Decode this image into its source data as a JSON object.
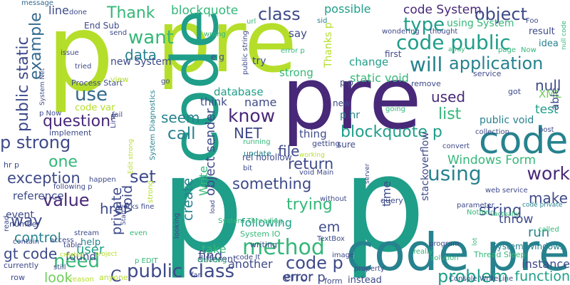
{
  "palette": {
    "purple": "#482878",
    "indigo": "#3e4a89",
    "blue": "#31688e",
    "teal": "#26828e",
    "green": "#1f9e89",
    "sea": "#35b779",
    "lime": "#6ece58",
    "yellowgreen": "#b5de2b",
    "yellow": "#fde725"
  },
  "words": [
    {
      "text": "p"
    },
    {
      "text": "pre"
    },
    {
      "text": "pre"
    },
    {
      "text": "p"
    },
    {
      "text": "p"
    },
    {
      "text": "code"
    },
    {
      "text": "code pre"
    },
    {
      "text": "code"
    },
    {
      "text": "Thank"
    },
    {
      "text": "blockquote"
    },
    {
      "text": "class"
    },
    {
      "text": "code System"
    },
    {
      "text": "type"
    },
    {
      "text": "object"
    },
    {
      "text": "want"
    },
    {
      "text": "code public"
    },
    {
      "text": "example"
    },
    {
      "text": "data"
    },
    {
      "text": "will"
    },
    {
      "text": "application"
    },
    {
      "text": "use"
    },
    {
      "text": "public static"
    },
    {
      "text": "question"
    },
    {
      "text": "know"
    },
    {
      "text": "NET"
    },
    {
      "text": "seem"
    },
    {
      "text": "call"
    },
    {
      "text": "p strong"
    },
    {
      "text": "blockquote p"
    },
    {
      "text": "file"
    },
    {
      "text": "one"
    },
    {
      "text": "return"
    },
    {
      "text": "exception"
    },
    {
      "text": "set"
    },
    {
      "text": "using"
    },
    {
      "text": "work"
    },
    {
      "text": "value"
    },
    {
      "text": "something"
    },
    {
      "text": "trying"
    },
    {
      "text": "string"
    },
    {
      "text": "way"
    },
    {
      "text": "method"
    },
    {
      "text": "need"
    },
    {
      "text": "public class"
    },
    {
      "text": "problem"
    },
    {
      "text": "code p"
    },
    {
      "text": "strong"
    },
    {
      "text": "list"
    },
    {
      "text": "null"
    },
    {
      "text": "test"
    },
    {
      "text": "database"
    },
    {
      "text": "used"
    },
    {
      "text": "possible"
    },
    {
      "text": "line"
    },
    {
      "text": "End Sub"
    },
    {
      "text": "message"
    },
    {
      "text": "Windows Form"
    },
    {
      "text": "make"
    },
    {
      "text": "href"
    },
    {
      "text": "control"
    },
    {
      "text": "gt code"
    },
    {
      "text": "em"
    },
    {
      "text": "following"
    },
    {
      "text": "find"
    },
    {
      "text": "run"
    },
    {
      "text": "error p"
    },
    {
      "text": "function"
    },
    {
      "text": "instance"
    },
    {
      "text": "look"
    },
    {
      "text": "private"
    },
    {
      "text": "create"
    },
    {
      "text": "void"
    },
    {
      "text": "reference"
    },
    {
      "text": "object sender"
    },
    {
      "text": "change"
    },
    {
      "text": "static void"
    },
    {
      "text": "thing"
    },
    {
      "text": "think"
    },
    {
      "text": "name"
    },
    {
      "text": "say"
    },
    {
      "text": "using System"
    },
    {
      "text": "result"
    },
    {
      "text": "idea"
    },
    {
      "text": "new System"
    },
    {
      "text": "Process Start"
    },
    {
      "text": "code var"
    },
    {
      "text": "XML"
    },
    {
      "text": "able"
    },
    {
      "text": "public void"
    },
    {
      "text": "time"
    },
    {
      "text": "throw"
    },
    {
      "text": "user"
    },
    {
      "text": "found"
    },
    {
      "text": "error"
    },
    {
      "text": "another"
    },
    {
      "text": "take"
    },
    {
      "text": "help"
    },
    {
      "text": "C"
    },
    {
      "text": "event"
    },
    {
      "text": "Console WriteLine"
    },
    {
      "text": "System Windows"
    },
    {
      "text": "Thread Sleep"
    },
    {
      "text": "System IO"
    },
    {
      "text": "System Threading"
    },
    {
      "text": "TextBox"
    },
    {
      "text": "p hr"
    },
    {
      "text": "new"
    },
    {
      "text": "first"
    },
    {
      "text": "Thanks p"
    },
    {
      "text": "try"
    },
    {
      "text": "public string"
    },
    {
      "text": "url"
    },
    {
      "text": "wrong"
    },
    {
      "text": "e g"
    },
    {
      "text": "error p"
    },
    {
      "text": "send"
    },
    {
      "text": "issue"
    },
    {
      "text": "tried"
    },
    {
      "text": "done"
    },
    {
      "text": "view"
    },
    {
      "text": "go"
    },
    {
      "text": "p Now"
    },
    {
      "text": "System Net"
    },
    {
      "text": "fail"
    },
    {
      "text": "Linq"
    },
    {
      "text": "implement"
    },
    {
      "text": "currently"
    },
    {
      "text": "getting"
    },
    {
      "text": "sure"
    },
    {
      "text": "rel nofollow"
    },
    {
      "text": "void Main"
    },
    {
      "text": "bit"
    },
    {
      "text": "running"
    },
    {
      "text": "update"
    },
    {
      "text": "writing"
    },
    {
      "text": "load"
    },
    {
      "text": "query"
    },
    {
      "text": "server"
    },
    {
      "text": "without"
    },
    {
      "text": "service"
    },
    {
      "text": "remove"
    },
    {
      "text": "got"
    },
    {
      "text": "going"
    },
    {
      "text": "collection"
    },
    {
      "text": "convert"
    },
    {
      "text": "post"
    },
    {
      "text": "wondering"
    },
    {
      "text": "thought"
    },
    {
      "text": "array"
    },
    {
      "text": "Foo"
    },
    {
      "text": "page"
    },
    {
      "text": "Now"
    },
    {
      "text": "null code"
    },
    {
      "text": "web service"
    },
    {
      "text": "actually"
    },
    {
      "text": "code private"
    },
    {
      "text": "parameter"
    },
    {
      "text": "Nothing"
    },
    {
      "text": "called"
    },
    {
      "text": "really"
    },
    {
      "text": "program"
    },
    {
      "text": "solution"
    },
    {
      "text": "lot"
    },
    {
      "text": "image"
    },
    {
      "text": "instead"
    },
    {
      "text": "form"
    },
    {
      "text": "property"
    },
    {
      "text": "different"
    },
    {
      "text": "code It"
    },
    {
      "text": "looking"
    },
    {
      "text": "creating"
    },
    {
      "text": "far"
    },
    {
      "text": "reason"
    },
    {
      "text": "anyone"
    },
    {
      "text": "created"
    },
    {
      "text": "project"
    },
    {
      "text": "p EDIT"
    },
    {
      "text": "access"
    },
    {
      "text": "contain"
    },
    {
      "text": "number"
    },
    {
      "text": "row"
    },
    {
      "text": "still"
    },
    {
      "text": "stream"
    },
    {
      "text": "table"
    },
    {
      "text": "read"
    },
    {
      "text": "hr p"
    },
    {
      "text": "following p"
    },
    {
      "text": "happen"
    },
    {
      "text": "Start"
    },
    {
      "text": "even"
    },
    {
      "text": "works fine"
    },
    {
      "text": "Edit strong"
    },
    {
      "text": "strong"
    },
    {
      "text": "stackoverflow"
    },
    {
      "text": "working"
    },
    {
      "text": "System Diagnostics"
    },
    {
      "text": "Write"
    },
    {
      "text": "sid"
    },
    {
      "text": "p p"
    },
    {
      "text": "p"
    }
  ]
}
